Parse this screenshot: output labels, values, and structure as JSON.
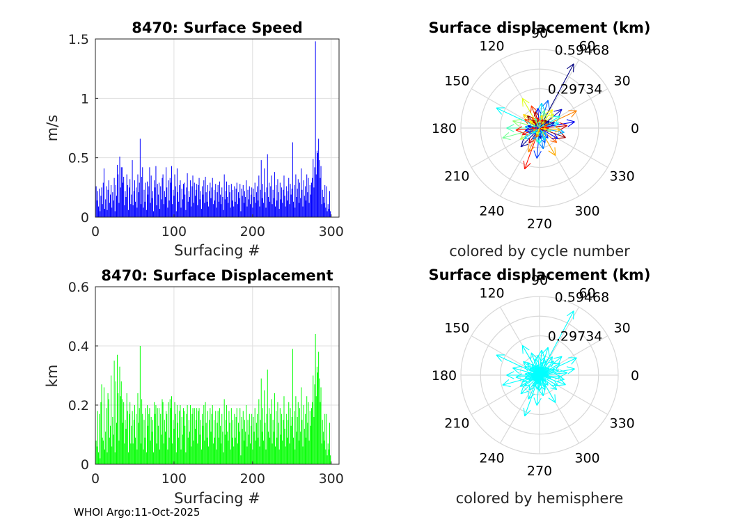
{
  "footer": "WHOI Argo:11-Oct-2025",
  "chart_data": [
    {
      "id": "speed",
      "type": "bar",
      "title": "8470: Surface Speed",
      "xlabel": "Surfacing #",
      "ylabel": "m/s",
      "xlim": [
        0,
        310
      ],
      "ylim": [
        0,
        1.5
      ],
      "xticks": [
        "0",
        "100",
        "200",
        "300"
      ],
      "yticks": [
        "0",
        "0.5",
        "1",
        "1.5"
      ],
      "color": "#0000ff",
      "grid": true,
      "values": [
        0.26,
        0.14,
        0.22,
        0.09,
        0.24,
        0.05,
        0.18,
        0.25,
        0.11,
        0.29,
        0.41,
        0.07,
        0.15,
        0.26,
        0.06,
        0.23,
        0.31,
        0.12,
        0.19,
        0.27,
        0.08,
        0.21,
        0.14,
        0.33,
        0.05,
        0.27,
        0.18,
        0.44,
        0.36,
        0.12,
        0.51,
        0.25,
        0.42,
        0.42,
        0.29,
        0.34,
        0.1,
        0.22,
        0.17,
        0.36,
        0.27,
        0.06,
        0.25,
        0.32,
        0.11,
        0.19,
        0.48,
        0.1,
        0.22,
        0.31,
        0.13,
        0.25,
        0.08,
        0.36,
        0.21,
        0.29,
        0.66,
        0.11,
        0.34,
        0.42,
        0.08,
        0.23,
        0.13,
        0.29,
        0.06,
        0.3,
        0.19,
        0.26,
        0.42,
        0.12,
        0.35,
        0.16,
        0.22,
        0.05,
        0.31,
        0.25,
        0.43,
        0.1,
        0.28,
        0.19,
        0.29,
        0.07,
        0.26,
        0.15,
        0.33,
        0.36,
        0.11,
        0.22,
        0.17,
        0.42,
        0.25,
        0.08,
        0.31,
        0.14,
        0.33,
        0.29,
        0.43,
        0.11,
        0.23,
        0.18,
        0.36,
        0.26,
        0.05,
        0.41,
        0.21,
        0.13,
        0.27,
        0.31,
        0.08,
        0.24,
        0.15,
        0.28,
        0.29,
        0.19,
        0.06,
        0.25,
        0.37,
        0.13,
        0.22,
        0.17,
        0.31,
        0.09,
        0.26,
        0.35,
        0.12,
        0.29,
        0.18,
        0.23,
        0.28,
        0.1,
        0.27,
        0.33,
        0.15,
        0.22,
        0.07,
        0.26,
        0.19,
        0.31,
        0.12,
        0.34,
        0.21,
        0.13,
        0.27,
        0.09,
        0.22,
        0.29,
        0.16,
        0.25,
        0.33,
        0.11,
        0.23,
        0.14,
        0.28,
        0.08,
        0.21,
        0.27,
        0.13,
        0.3,
        0.19,
        0.11,
        0.25,
        0.17,
        0.06,
        0.36,
        0.15,
        0.22,
        0.3,
        0.17,
        0.12,
        0.27,
        0.21,
        0.08,
        0.28,
        0.14,
        0.23,
        0.09,
        0.26,
        0.13,
        0.24,
        0.29,
        0.11,
        0.21,
        0.16,
        0.28,
        0.05,
        0.24,
        0.18,
        0.27,
        0.12,
        0.22,
        0.17,
        0.31,
        0.09,
        0.23,
        0.15,
        0.26,
        0.11,
        0.19,
        0.25,
        0.08,
        0.24,
        0.17,
        0.29,
        0.12,
        0.21,
        0.26,
        0.14,
        0.35,
        0.09,
        0.23,
        0.48,
        0.16,
        0.28,
        0.12,
        0.41,
        0.21,
        0.08,
        0.25,
        0.53,
        0.17,
        0.29,
        0.13,
        0.26,
        0.35,
        0.11,
        0.23,
        0.16,
        0.38,
        0.09,
        0.27,
        0.14,
        0.32,
        0.21,
        0.07,
        0.29,
        0.15,
        0.25,
        0.12,
        0.23,
        0.35,
        0.18,
        0.09,
        0.26,
        0.14,
        0.22,
        0.33,
        0.11,
        0.28,
        0.19,
        0.24,
        0.63,
        0.13,
        0.27,
        0.08,
        0.36,
        0.17,
        0.24,
        0.32,
        0.12,
        0.29,
        0.16,
        0.41,
        0.23,
        0.09,
        0.31,
        0.18,
        0.26,
        0.14,
        0.36,
        0.21,
        0.33,
        0.12,
        0.27,
        0.19,
        0.29,
        0.33,
        0.49,
        0.25,
        0.42,
        1.48,
        0.36,
        0.56,
        0.54,
        0.66,
        0.48,
        0.33,
        0.43,
        0.11,
        0.23,
        0.17,
        0.12,
        0.27,
        0.08,
        0.26,
        0.05,
        0.11,
        0.07,
        0.22,
        0.05
      ]
    },
    {
      "id": "displacement",
      "type": "bar",
      "title": "8470: Surface Displacement",
      "xlabel": "Surfacing #",
      "ylabel": "km",
      "xlim": [
        0,
        310
      ],
      "ylim": [
        0,
        0.6
      ],
      "xticks": [
        "0",
        "100",
        "200",
        "300"
      ],
      "yticks": [
        "0",
        "0.2",
        "0.4",
        "0.6"
      ],
      "color": "#00ff00",
      "grid": true,
      "values": [
        0.08,
        0.06,
        0.18,
        0.04,
        0.17,
        0.02,
        0.21,
        0.27,
        0.09,
        0.08,
        0.26,
        0.05,
        0.11,
        0.19,
        0.04,
        0.24,
        0.22,
        0.09,
        0.13,
        0.3,
        0.06,
        0.16,
        0.1,
        0.35,
        0.04,
        0.28,
        0.14,
        0.37,
        0.24,
        0.08,
        0.33,
        0.23,
        0.28,
        0.22,
        0.14,
        0.21,
        0.07,
        0.15,
        0.12,
        0.24,
        0.18,
        0.04,
        0.17,
        0.21,
        0.07,
        0.13,
        0.18,
        0.07,
        0.15,
        0.2,
        0.09,
        0.17,
        0.05,
        0.24,
        0.14,
        0.19,
        0.4,
        0.07,
        0.22,
        0.17,
        0.05,
        0.15,
        0.09,
        0.19,
        0.04,
        0.2,
        0.13,
        0.17,
        0.19,
        0.08,
        0.16,
        0.11,
        0.15,
        0.04,
        0.21,
        0.17,
        0.2,
        0.07,
        0.19,
        0.13,
        0.19,
        0.05,
        0.17,
        0.1,
        0.22,
        0.21,
        0.07,
        0.15,
        0.11,
        0.18,
        0.17,
        0.05,
        0.21,
        0.09,
        0.22,
        0.19,
        0.23,
        0.07,
        0.15,
        0.12,
        0.21,
        0.17,
        0.04,
        0.2,
        0.14,
        0.09,
        0.18,
        0.2,
        0.05,
        0.16,
        0.1,
        0.19,
        0.18,
        0.13,
        0.04,
        0.17,
        0.2,
        0.09,
        0.15,
        0.11,
        0.2,
        0.06,
        0.17,
        0.19,
        0.08,
        0.19,
        0.12,
        0.15,
        0.19,
        0.07,
        0.18,
        0.19,
        0.1,
        0.15,
        0.05,
        0.17,
        0.13,
        0.2,
        0.08,
        0.21,
        0.14,
        0.09,
        0.18,
        0.06,
        0.15,
        0.19,
        0.11,
        0.17,
        0.2,
        0.07,
        0.15,
        0.09,
        0.18,
        0.05,
        0.14,
        0.18,
        0.09,
        0.19,
        0.13,
        0.07,
        0.17,
        0.11,
        0.04,
        0.22,
        0.1,
        0.15,
        0.2,
        0.11,
        0.08,
        0.18,
        0.14,
        0.05,
        0.19,
        0.09,
        0.15,
        0.06,
        0.17,
        0.09,
        0.16,
        0.19,
        0.07,
        0.14,
        0.11,
        0.19,
        0.03,
        0.16,
        0.12,
        0.18,
        0.08,
        0.15,
        0.11,
        0.2,
        0.06,
        0.15,
        0.1,
        0.17,
        0.07,
        0.13,
        0.17,
        0.05,
        0.16,
        0.11,
        0.19,
        0.08,
        0.14,
        0.17,
        0.09,
        0.22,
        0.06,
        0.15,
        0.29,
        0.11,
        0.19,
        0.08,
        0.25,
        0.14,
        0.05,
        0.17,
        0.32,
        0.11,
        0.19,
        0.09,
        0.17,
        0.22,
        0.07,
        0.15,
        0.11,
        0.24,
        0.06,
        0.18,
        0.09,
        0.21,
        0.14,
        0.05,
        0.19,
        0.1,
        0.17,
        0.08,
        0.15,
        0.23,
        0.12,
        0.06,
        0.17,
        0.09,
        0.15,
        0.21,
        0.07,
        0.19,
        0.13,
        0.16,
        0.39,
        0.09,
        0.18,
        0.05,
        0.23,
        0.11,
        0.16,
        0.21,
        0.08,
        0.19,
        0.11,
        0.26,
        0.15,
        0.06,
        0.2,
        0.12,
        0.17,
        0.09,
        0.23,
        0.14,
        0.21,
        0.08,
        0.18,
        0.13,
        0.19,
        0.21,
        0.3,
        0.16,
        0.27,
        0.44,
        0.23,
        0.33,
        0.31,
        0.38,
        0.29,
        0.21,
        0.26,
        0.07,
        0.15,
        0.11,
        0.08,
        0.17,
        0.05,
        0.17,
        0.03,
        0.07,
        0.05,
        0.14,
        0.03
      ]
    },
    {
      "id": "polar-cycle",
      "type": "polar",
      "title": "Surface displacement (km)",
      "subtitle": "colored by cycle number",
      "rmax": 0.59468,
      "rticks": [
        "0.29734",
        "0.59468"
      ],
      "angle_labels": [
        "0",
        "30",
        "60",
        "90",
        "120",
        "150",
        "180",
        "210",
        "240",
        "270",
        "300",
        "330"
      ],
      "coloring": "cycle",
      "series": {
        "angles": [
          62,
          155,
          25,
          10,
          195,
          250,
          73,
          120,
          340,
          85,
          300,
          40,
          180,
          110,
          265,
          210,
          5,
          350,
          140,
          225,
          30,
          320,
          95,
          165,
          200,
          280,
          55,
          135,
          15,
          245,
          330,
          75,
          185,
          290,
          45,
          105,
          215,
          355,
          20,
          260,
          150,
          310,
          65,
          235,
          175,
          80,
          35,
          270,
          125,
          190,
          345,
          100,
          240,
          145,
          50,
          295,
          255,
          170,
          115,
          0,
          205,
          60,
          130,
          315,
          90,
          275,
          160,
          25,
          230,
          305,
          70,
          195,
          350,
          140,
          220,
          15,
          285,
          95,
          180,
          40,
          250,
          325,
          120,
          200,
          55,
          275,
          160,
          85,
          240,
          10,
          300,
          130,
          205,
          35,
          265,
          175,
          75,
          320,
          150,
          230
        ],
        "radii": [
          0.55,
          0.36,
          0.31,
          0.27,
          0.29,
          0.33,
          0.22,
          0.26,
          0.21,
          0.19,
          0.24,
          0.22,
          0.25,
          0.18,
          0.23,
          0.17,
          0.21,
          0.19,
          0.16,
          0.2,
          0.18,
          0.17,
          0.15,
          0.21,
          0.14,
          0.16,
          0.17,
          0.13,
          0.15,
          0.2,
          0.16,
          0.14,
          0.18,
          0.12,
          0.15,
          0.13,
          0.14,
          0.16,
          0.12,
          0.11,
          0.13,
          0.1,
          0.12,
          0.14,
          0.11,
          0.1,
          0.09,
          0.12,
          0.1,
          0.11,
          0.09,
          0.08,
          0.1,
          0.09,
          0.08,
          0.1,
          0.07,
          0.09,
          0.08,
          0.07,
          0.09,
          0.06,
          0.08,
          0.07,
          0.06,
          0.08,
          0.05,
          0.07,
          0.06,
          0.05,
          0.07,
          0.06,
          0.05,
          0.04,
          0.06,
          0.05,
          0.04,
          0.05,
          0.06,
          0.04,
          0.05,
          0.03,
          0.04,
          0.05,
          0.03,
          0.04,
          0.03,
          0.04,
          0.05,
          0.03,
          0.04,
          0.03,
          0.02,
          0.04,
          0.03,
          0.02,
          0.03,
          0.02,
          0.03,
          0.02
        ]
      }
    },
    {
      "id": "polar-hemisphere",
      "type": "polar",
      "title": "Surface displacement (km)",
      "subtitle": "colored by hemisphere",
      "rmax": 0.59468,
      "rticks": [
        "0.29734",
        "0.59468"
      ],
      "angle_labels": [
        "0",
        "30",
        "60",
        "90",
        "120",
        "150",
        "180",
        "210",
        "240",
        "270",
        "300",
        "330"
      ],
      "coloring": "single",
      "color": "#00ffff"
    }
  ]
}
